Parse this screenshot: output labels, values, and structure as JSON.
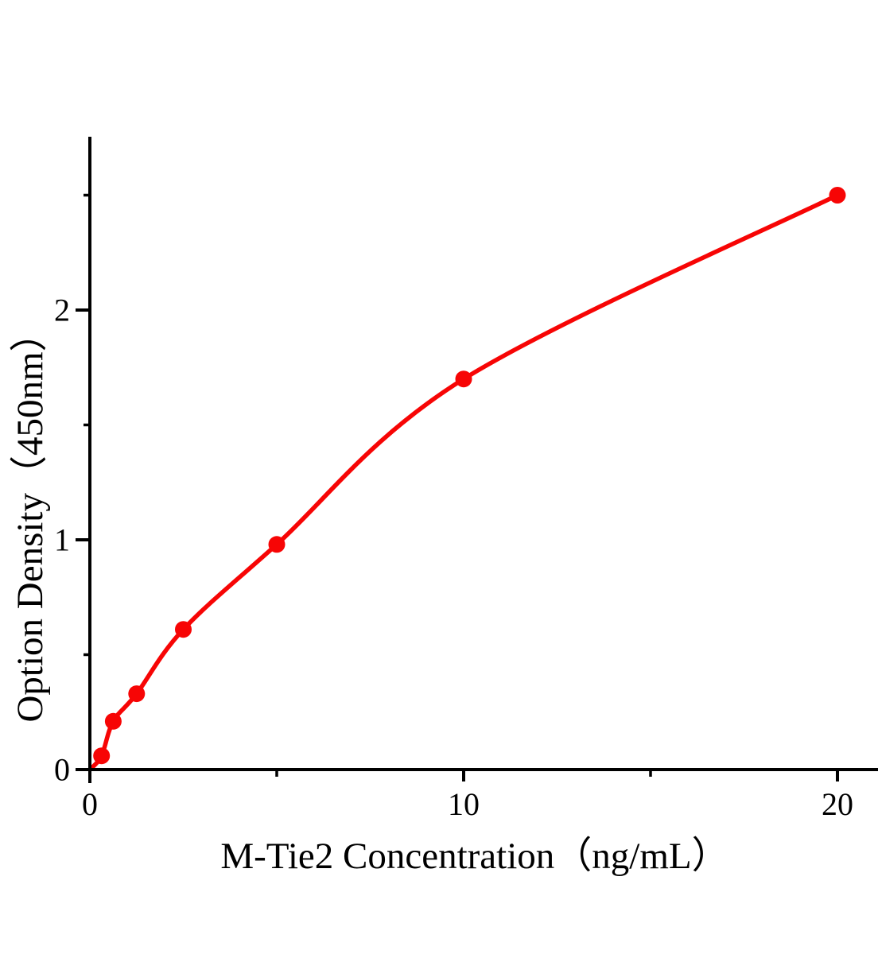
{
  "chart_data": {
    "type": "scatter-line",
    "title": "",
    "x": [
      0.313,
      0.625,
      1.25,
      2.5,
      5,
      10,
      20
    ],
    "y": [
      0.06,
      0.21,
      0.33,
      0.61,
      0.98,
      1.7,
      2.5
    ],
    "curve_start": [
      0,
      0
    ],
    "x_axis": {
      "label": "M-Tie2 Concentration（ng/mL）",
      "major_ticks": [
        0,
        10,
        20
      ],
      "minor_ticks": [
        5,
        15
      ],
      "range": [
        0,
        21.1
      ]
    },
    "y_axis": {
      "label": "Option Density（450nm）",
      "major_ticks": [
        0,
        1,
        2
      ],
      "minor_ticks": [
        0.5,
        1.5,
        2.5
      ],
      "range": [
        0,
        2.76
      ]
    },
    "grid": false,
    "legend": null,
    "colors": {
      "curve": "#f70505",
      "marker": "#f70505",
      "axis": "#000000",
      "background": "#ffffff"
    }
  }
}
